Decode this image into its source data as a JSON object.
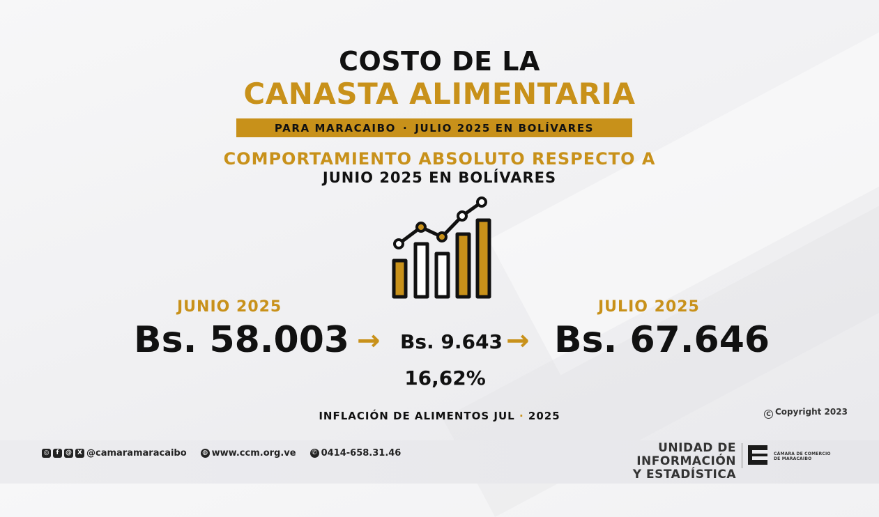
{
  "header": {
    "title_line1": "COSTO DE LA",
    "title_line2": "CANASTA ALIMENTARIA",
    "band_left": "PARA MARACAIBO",
    "band_sep": "·",
    "band_right": "JULIO 2025 EN BOLÍVARES",
    "subtitle_line1": "COMPORTAMIENTO ABSOLUTO RESPECTO A",
    "subtitle_line2": "JUNIO 2025 EN BOLÍVARES"
  },
  "comparison": {
    "previous_label": "JUNIO 2025",
    "previous_value": "Bs. 58.003",
    "difference": "Bs. 9.643",
    "percent": "16,62%",
    "current_label": "JULIO 2025",
    "current_value": "Bs. 67.646",
    "arrow": "→"
  },
  "footnote": {
    "left": "INFLACIÓN DE ALIMENTOS JUL",
    "sep": "·",
    "right": "2025"
  },
  "copyright": "Copyright 2023",
  "footer": {
    "social_handle": "@camaramaracaibo",
    "website": "www.ccm.org.ve",
    "phone": "0414-658.31.46",
    "unit_line1": "UNIDAD DE INFORMACIÓN",
    "unit_line2": "Y ESTADÍSTICA",
    "org_line1": "CÁMARA DE COMERCIO",
    "org_line2": "DE MARACAIBO"
  },
  "icons": [
    "chart-growth-icon",
    "instagram-icon",
    "facebook-icon",
    "threads-icon",
    "x-icon",
    "globe-icon",
    "whatsapp-icon",
    "ccm-logo-icon",
    "copyright-icon",
    "arrow-right-icon"
  ],
  "colors": {
    "accent": "#c8911a",
    "text": "#111111"
  }
}
